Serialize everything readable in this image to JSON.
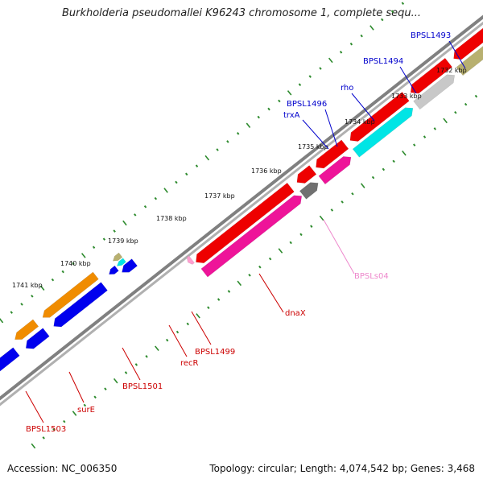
{
  "title": "Burkholderia pseudomallei K96243 chromosome 1, complete sequ...",
  "footer": {
    "accession": "Accession: NC_006350",
    "summary": "Topology: circular; Length: 4,074,542 bp; Genes: 3,468"
  },
  "scale_labels": [
    "1732 kbp",
    "1733 kbp",
    "1734 kbp",
    "1735 kbp",
    "1736 kbp",
    "1737 kbp",
    "1738 kbp",
    "1739 kbp",
    "1740 kbp",
    "1741 kbp"
  ],
  "gene_labels": {
    "forward": [
      "BPSL1493",
      "BPSL1494",
      "rho",
      "BPSL1496",
      "trxA"
    ],
    "reverse": [
      "BPSLs04",
      "dnaX",
      "BPSL1499",
      "recR",
      "BPSL1501",
      "surE",
      "BPSL1503"
    ]
  },
  "colors": {
    "forward_label": "#0000cc",
    "reverse_label": "#cc0000",
    "srna_label": "#ee88cc",
    "tick": "#2e8b2e",
    "backbone": "#808080",
    "blue": "#0000ee",
    "orange": "#f08c00",
    "red": "#ee0000",
    "magenta": "#ee1499",
    "cyan": "#00e5e5",
    "khaki": "#b8b070",
    "lightgray": "#c8c8c8",
    "darkgray": "#707070",
    "pink": "#ff9fd0"
  }
}
